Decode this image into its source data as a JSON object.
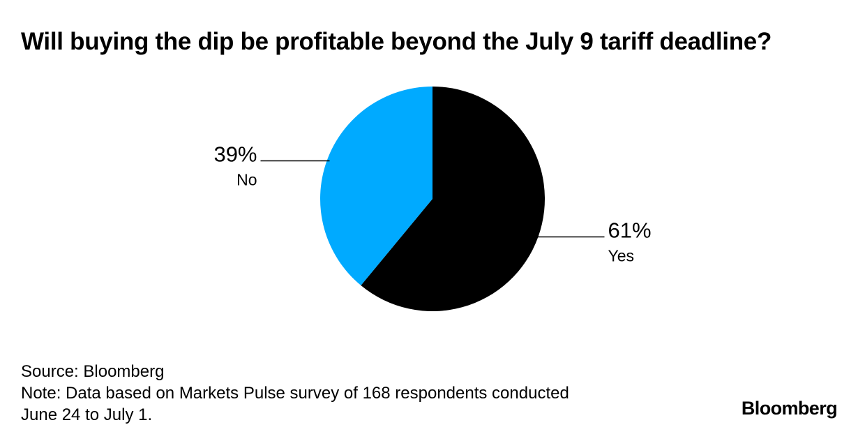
{
  "chart_data": {
    "type": "pie",
    "title": "Will buying the dip be profitable beyond the July 9 tariff deadline?",
    "slices": [
      {
        "label": "Yes",
        "value": 61,
        "value_label": "61%",
        "color": "#000000"
      },
      {
        "label": "No",
        "value": 39,
        "value_label": "39%",
        "color": "#00aaff"
      }
    ],
    "start_angle": "12 o'clock",
    "direction": "clockwise"
  },
  "footer": {
    "source": "Source: Bloomberg",
    "note_line1": "Note: Data based on Markets Pulse survey of 168 respondents conducted",
    "note_line2": "June 24 to July 1."
  },
  "brand": {
    "logo_text": "Bloomberg"
  }
}
